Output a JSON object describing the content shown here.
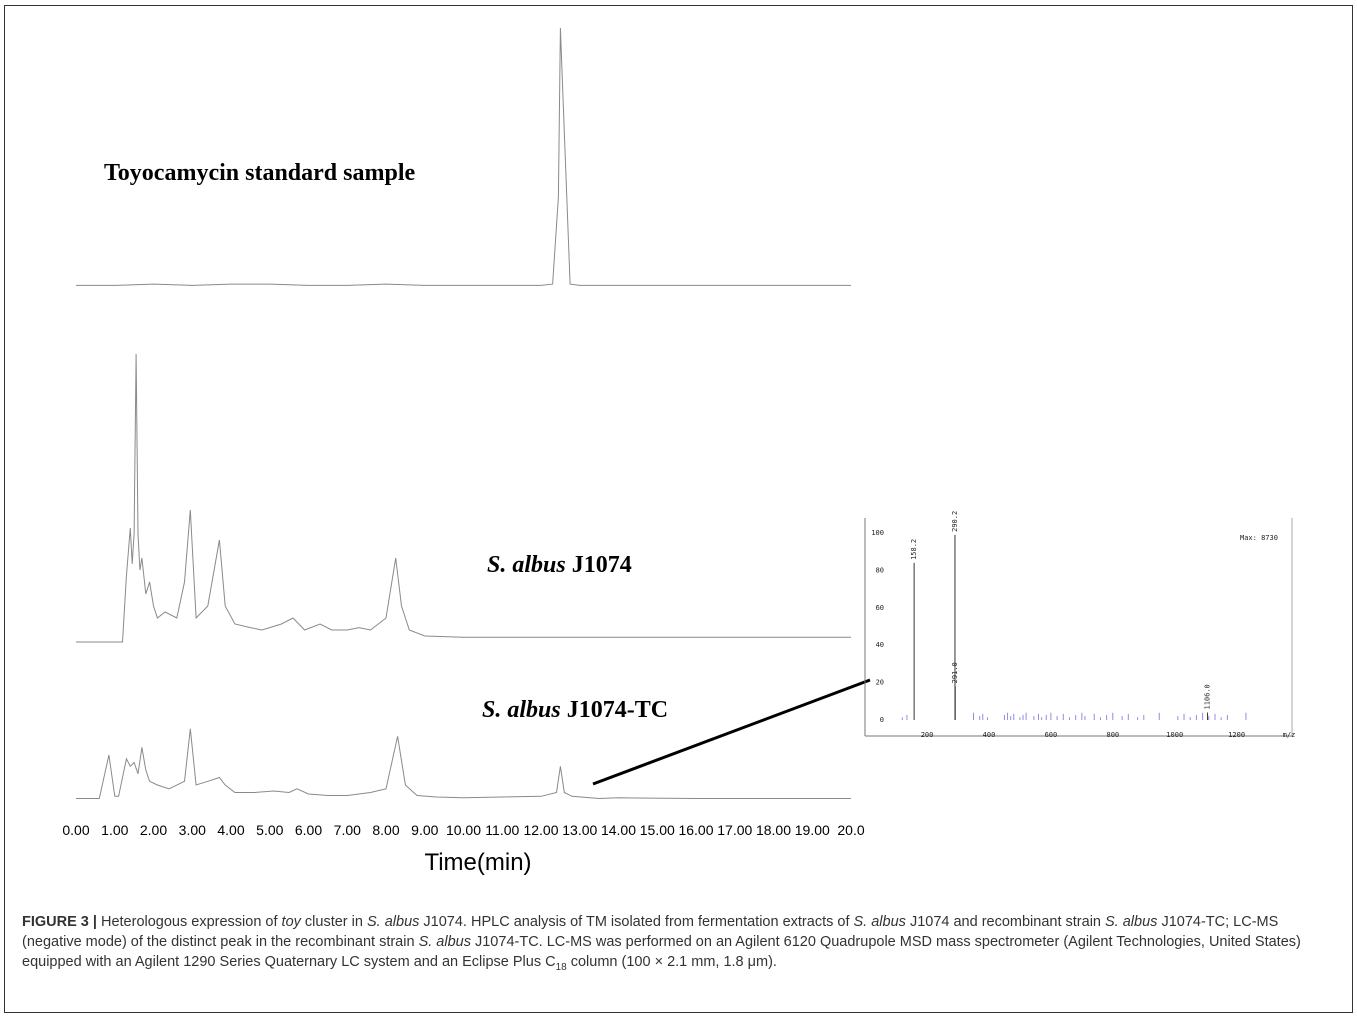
{
  "figure": {
    "trace_labels": {
      "standard": "Toyocamycin standard sample",
      "wild_italic": "S. albus",
      "wild_rest": " J1074",
      "recomb_italic": "S. albus",
      "recomb_rest": " J1074-TC"
    },
    "x_axis_title": "Time(min)",
    "x_tick_labels": [
      "0.00",
      "1.00",
      "2.00",
      "3.00",
      "4.00",
      "5.00",
      "6.00",
      "7.00",
      "8.00",
      "9.00",
      "10.00",
      "11.00",
      "12.00",
      "13.00",
      "14.00",
      "15.00",
      "16.00",
      "17.00",
      "18.00",
      "19.00",
      "20.0"
    ]
  },
  "chart_data": [
    {
      "type": "line",
      "x_range": [
        0,
        20
      ],
      "xlabel": "Time(min)",
      "series": [
        {
          "name": "Toyocamycin standard sample",
          "x": [
            0,
            1,
            2,
            3,
            4,
            5,
            6,
            7,
            8,
            9,
            10,
            11,
            12,
            12.3,
            12.45,
            12.5,
            12.6,
            12.75,
            13,
            14,
            16,
            18,
            20
          ],
          "y": [
            0.02,
            0.02,
            0.03,
            0.02,
            0.03,
            0.03,
            0.02,
            0.02,
            0.03,
            0.02,
            0.02,
            0.02,
            0.02,
            0.03,
            0.7,
            2.0,
            1.2,
            0.03,
            0.02,
            0.02,
            0.02,
            0.02,
            0.02
          ]
        },
        {
          "name": "S. albus J1074",
          "x": [
            0,
            1.2,
            1.3,
            1.4,
            1.45,
            1.5,
            1.55,
            1.6,
            1.65,
            1.7,
            1.8,
            1.9,
            2.0,
            2.1,
            2.3,
            2.6,
            2.8,
            2.95,
            3.1,
            3.4,
            3.7,
            3.85,
            4.1,
            4.5,
            4.8,
            5.3,
            5.6,
            5.9,
            6.3,
            6.6,
            7.0,
            7.3,
            7.6,
            7.8,
            8.0,
            8.25,
            8.4,
            8.6,
            9.0,
            10,
            12,
            14,
            16,
            18,
            20
          ],
          "y": [
            0,
            0,
            0.55,
            0.95,
            0.65,
            0.9,
            2.4,
            0.9,
            0.6,
            0.7,
            0.4,
            0.5,
            0.3,
            0.2,
            0.25,
            0.2,
            0.5,
            1.1,
            0.2,
            0.3,
            0.85,
            0.3,
            0.15,
            0.12,
            0.1,
            0.15,
            0.2,
            0.1,
            0.15,
            0.1,
            0.1,
            0.12,
            0.1,
            0.15,
            0.2,
            0.7,
            0.3,
            0.1,
            0.05,
            0.04,
            0.04,
            0.04,
            0.04,
            0.04,
            0.04
          ]
        },
        {
          "name": "S. albus J1074-TC",
          "x": [
            0,
            0.6,
            0.85,
            1.0,
            1.1,
            1.3,
            1.4,
            1.5,
            1.6,
            1.7,
            1.8,
            1.9,
            2.1,
            2.4,
            2.8,
            2.95,
            3.1,
            3.4,
            3.7,
            3.85,
            4.1,
            4.6,
            5.1,
            5.5,
            5.7,
            6.0,
            6.5,
            7.0,
            7.6,
            8.0,
            8.3,
            8.5,
            8.8,
            9.3,
            10,
            11,
            12,
            12.4,
            12.5,
            12.6,
            12.8,
            13.5,
            14,
            16,
            18,
            20
          ],
          "y": [
            0.02,
            0.02,
            0.6,
            0.05,
            0.05,
            0.55,
            0.45,
            0.5,
            0.35,
            0.7,
            0.4,
            0.25,
            0.2,
            0.15,
            0.25,
            0.95,
            0.2,
            0.25,
            0.3,
            0.2,
            0.1,
            0.1,
            0.12,
            0.1,
            0.15,
            0.08,
            0.06,
            0.06,
            0.1,
            0.15,
            0.85,
            0.2,
            0.06,
            0.04,
            0.03,
            0.04,
            0.05,
            0.1,
            0.45,
            0.1,
            0.05,
            0.02,
            0.03,
            0.02,
            0.02,
            0.02
          ]
        }
      ]
    },
    {
      "type": "bar",
      "xlabel": "m/z",
      "x_range": [
        90,
        1340
      ],
      "y_range": [
        0,
        100
      ],
      "x_ticks": [
        200,
        400,
        600,
        800,
        1000,
        1200
      ],
      "y_ticks": [
        0,
        20,
        40,
        60,
        80,
        100
      ],
      "max_text": "Max: 8730",
      "labeled_peaks": [
        {
          "mz": 158.2,
          "intensity": 84,
          "label": "158.2"
        },
        {
          "mz": 290.2,
          "intensity": 99,
          "label": "290.2"
        },
        {
          "mz": 291.0,
          "intensity": 18,
          "label": "291.0"
        },
        {
          "mz": 1106.0,
          "intensity": 4,
          "label": "1106.0"
        }
      ]
    }
  ],
  "caption": {
    "fig_no": "FIGURE 3 |",
    "t1": " Heterologous expression of ",
    "i1": "toy",
    "t2": " cluster in ",
    "i2": "S. albus",
    "t3": " J1074. HPLC analysis of TM isolated from fermentation extracts of ",
    "i3": "S. albus",
    "t4": " J1074 and recombinant strain ",
    "i4": "S. albus",
    "t5": " J1074-TC; LC-MS (negative mode) of the distinct peak in the recombinant strain ",
    "i5": "S. albus",
    "t6": " J1074-TC. LC-MS was performed on an Agilent 6120 Quadrupole MSD mass spectrometer (Agilent Technologies, United States) equipped with an Agilent 1290 Series Quaternary LC system and an Eclipse Plus C",
    "sub": "18",
    "t7": " column (100 × 2.1 mm, 1.8 μm)."
  }
}
